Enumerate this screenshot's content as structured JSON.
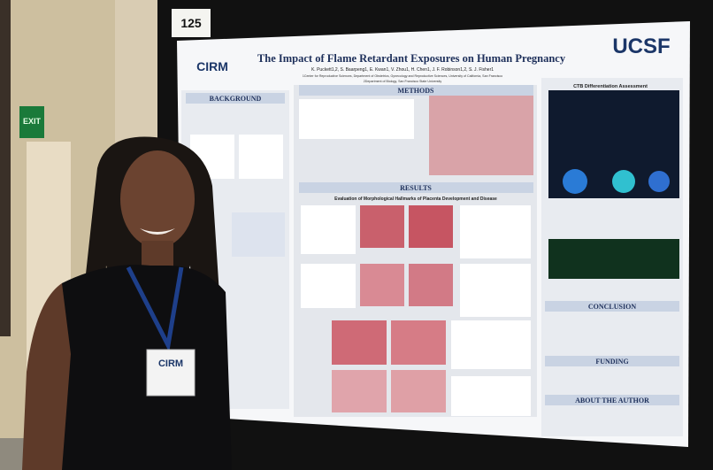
{
  "sign": {
    "number": "125",
    "exit": "EXIT"
  },
  "poster": {
    "title": "The Impact of Flame Retardant Exposures on Human Pregnancy",
    "logo_right": "UCSF",
    "logo_left": "CIRM",
    "authors": "K. Puckett1,2, S. Baarpeng1, E. Kwan1, V. Zhou1, H. Chen1, J. F. Robinson1,2, S. J. Fisher1",
    "affiliation_1": "1Center for Reproductive Sciences, Department of Obstetrics, Gynecology and Reproductive Sciences, University of California, San Francisco",
    "affiliation_2": "2Department of Biology, San Francisco State University",
    "sections": {
      "background": "BACKGROUND",
      "methods": "METHODS",
      "results": "RESULTS",
      "results_subtitle": "Evaluation of Morphological Hallmarks of Placenta Development and Disease",
      "ctb": "CTB Differentiation Assessment",
      "conclusion": "CONCLUSION",
      "funding": "FUNDING",
      "about": "ABOUT THE AUTHOR"
    }
  },
  "badge": {
    "logo": "CIRM"
  }
}
